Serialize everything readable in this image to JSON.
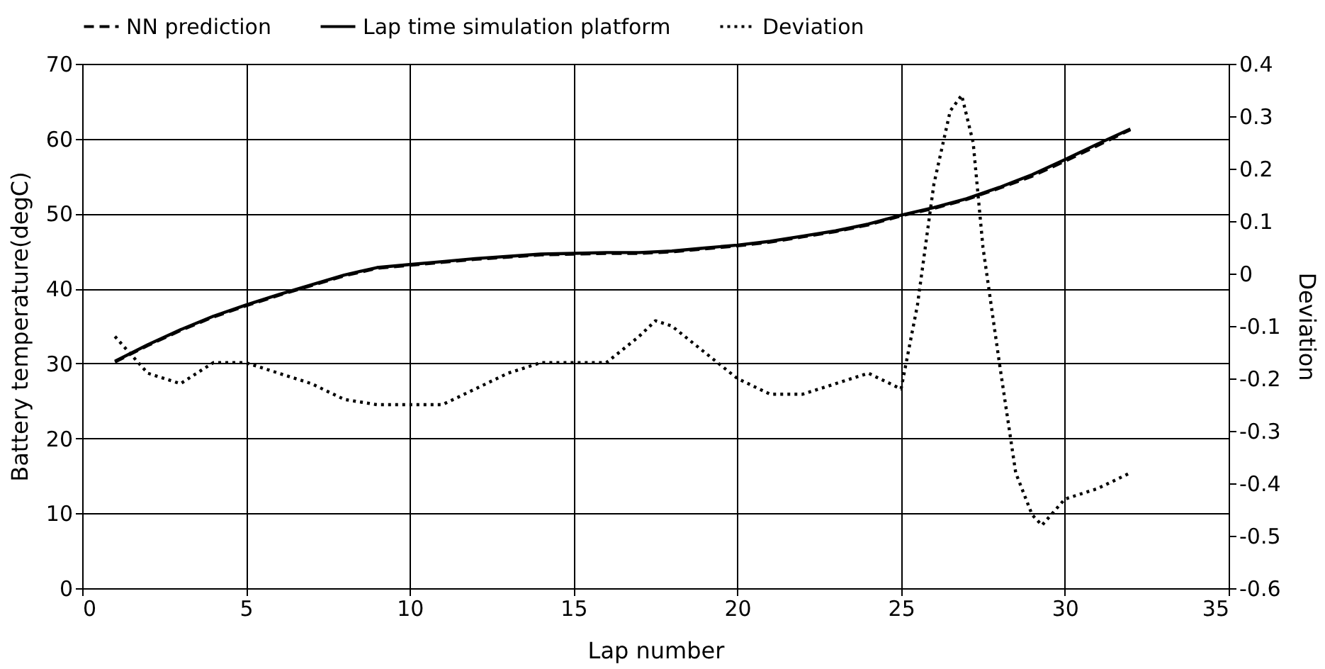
{
  "chart_data": {
    "type": "line",
    "xlabel": "Lap number",
    "ylabel": "Battery temperature(degC)",
    "y2label": "Deviation",
    "xlim": [
      0,
      35
    ],
    "xticks": [
      0,
      5,
      10,
      15,
      20,
      25,
      30,
      35
    ],
    "ylim": [
      0,
      70
    ],
    "yticks": [
      0,
      10,
      20,
      30,
      40,
      50,
      60,
      70
    ],
    "y2lim": [
      -0.6,
      0.4
    ],
    "y2ticks": [
      -0.6,
      -0.5,
      -0.4,
      -0.3,
      -0.2,
      -0.1,
      0,
      0.1,
      0.2,
      0.3,
      0.4
    ],
    "grid": true,
    "legend": "top",
    "marker": "none",
    "series": [
      {
        "name": "NN prediction",
        "color": "#000000",
        "line_style": "dashed",
        "x": [
          1,
          2,
          3,
          4,
          5,
          6,
          7,
          8,
          9,
          10,
          11,
          12,
          13,
          14,
          15,
          16,
          17,
          18,
          19,
          20,
          21,
          22,
          23,
          24,
          25,
          26,
          27,
          28,
          29,
          30,
          31,
          32
        ],
        "values": [
          30.2,
          32.4,
          34.4,
          36.2,
          37.7,
          39.1,
          40.4,
          41.7,
          42.7,
          43.1,
          43.5,
          43.9,
          44.2,
          44.5,
          44.6,
          44.7,
          44.7,
          44.9,
          45.3,
          45.7,
          46.2,
          46.9,
          47.6,
          48.5,
          49.7,
          50.7,
          51.9,
          53.4,
          55.0,
          57.0,
          59.1,
          61.2
        ]
      },
      {
        "name": "Lap time simulation platform",
        "color": "#000000",
        "line_style": "solid",
        "x": [
          1,
          2,
          3,
          4,
          5,
          6,
          7,
          8,
          9,
          10,
          11,
          12,
          13,
          14,
          15,
          16,
          17,
          18,
          19,
          20,
          21,
          22,
          23,
          24,
          25,
          26,
          27,
          28,
          29,
          30,
          31,
          32
        ],
        "values": [
          30.3,
          32.5,
          34.5,
          36.3,
          37.8,
          39.2,
          40.5,
          41.8,
          42.8,
          43.2,
          43.6,
          44.0,
          44.3,
          44.6,
          44.7,
          44.8,
          44.8,
          45.0,
          45.4,
          45.8,
          46.3,
          47.0,
          47.7,
          48.6,
          49.8,
          50.8,
          52.0,
          53.5,
          55.2,
          57.2,
          59.3,
          61.3
        ]
      },
      {
        "name": "Deviation",
        "color": "#000000",
        "line_style": "dotted",
        "axis": "y2",
        "x": [
          1,
          2,
          3,
          4,
          5,
          6,
          7,
          8,
          9,
          10,
          11,
          12,
          13,
          14,
          15,
          16,
          17,
          17.5,
          18,
          19,
          20,
          21,
          22,
          23,
          24,
          25,
          25.5,
          26,
          26.5,
          26.85,
          27.2,
          27.5,
          28,
          28.5,
          29,
          29.3,
          30,
          31,
          32
        ],
        "values": [
          -0.12,
          -0.19,
          -0.21,
          -0.17,
          -0.17,
          -0.19,
          -0.21,
          -0.24,
          -0.25,
          -0.25,
          -0.25,
          -0.22,
          -0.19,
          -0.17,
          -0.17,
          -0.17,
          -0.12,
          -0.09,
          -0.1,
          -0.15,
          -0.2,
          -0.23,
          -0.23,
          -0.21,
          -0.19,
          -0.22,
          -0.06,
          0.17,
          0.31,
          0.34,
          0.25,
          0.05,
          -0.17,
          -0.38,
          -0.46,
          -0.48,
          -0.43,
          -0.41,
          -0.38
        ]
      }
    ]
  }
}
